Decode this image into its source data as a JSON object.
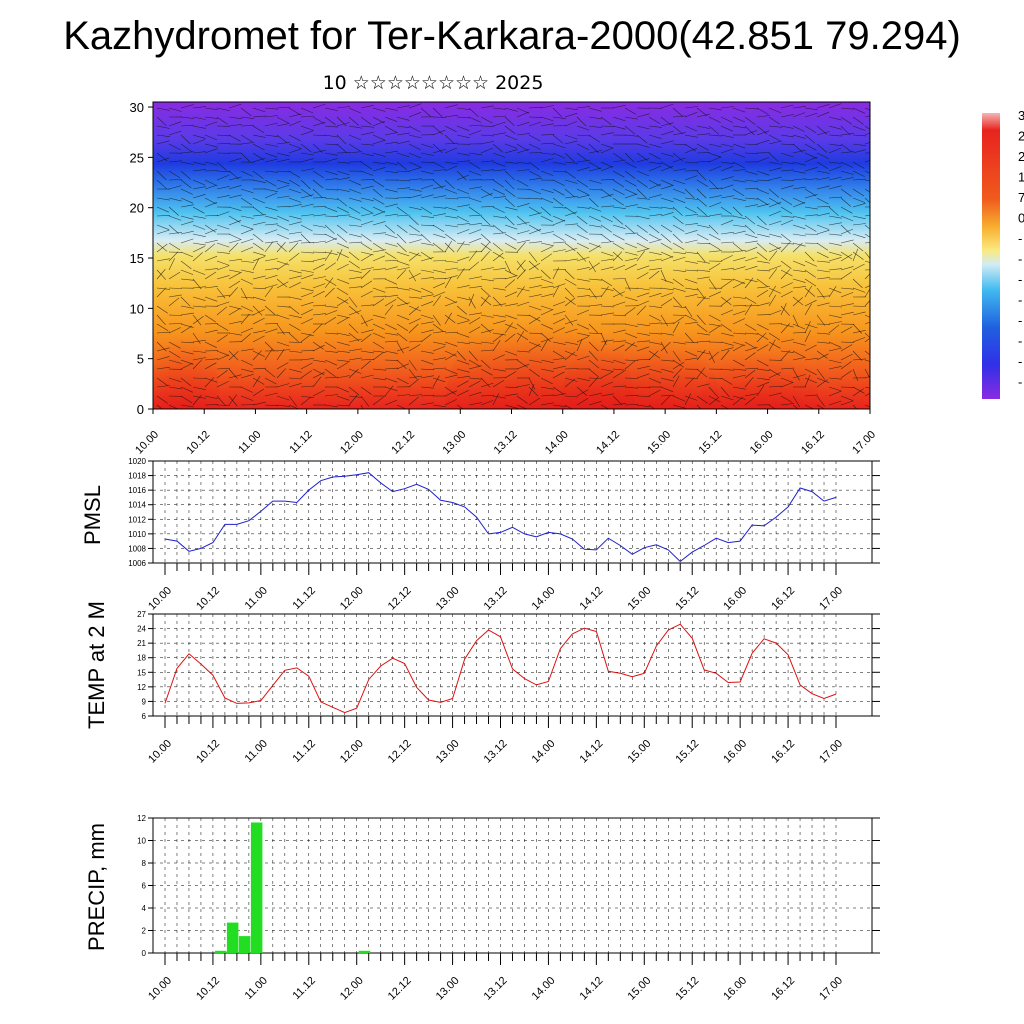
{
  "title": "Kazhydromet for Ter-Karkara-2000(42.851 79.294)",
  "subtitle": "10 ☆☆☆☆☆☆☆☆ 2025",
  "chart_data": [
    {
      "type": "heatmap",
      "name": "cross-section",
      "x_ticks": [
        "10.00",
        "10.12",
        "11.00",
        "11.12",
        "12.00",
        "12.12",
        "13.00",
        "13.12",
        "14.00",
        "14.12",
        "15.00",
        "15.12",
        "16.00",
        "16.12",
        "17.00"
      ],
      "y_ticks": [
        0,
        5,
        10,
        15,
        20,
        25,
        30
      ],
      "ylim": [
        0,
        30.5
      ],
      "colorbar_labels": [
        "3",
        "2",
        "2",
        "1",
        "7",
        "0",
        "-",
        "-",
        "-",
        "-",
        "-",
        "-",
        "-",
        "-"
      ],
      "colors": {
        "top": "#8a2be2",
        "blue": "#1f3be0",
        "cyan": "#4fc3f0",
        "yellow": "#f5e16a",
        "orange": "#f7941d",
        "red": "#e8231e"
      }
    },
    {
      "type": "line",
      "ylabel": "PMSL",
      "ylim": [
        1006,
        1020
      ],
      "y_ticks": [
        1006,
        1008,
        1010,
        1012,
        1014,
        1016,
        1018,
        1020
      ],
      "x_ticks": [
        "10.00",
        "10.12",
        "11.00",
        "11.12",
        "12.00",
        "12.12",
        "13.00",
        "13.12",
        "14.00",
        "14.12",
        "15.00",
        "15.12",
        "16.00",
        "16.12",
        "17.00"
      ],
      "color": "#1f1fd0",
      "values": [
        1009.3,
        1009.0,
        1007.6,
        1008.0,
        1008.8,
        1011.3,
        1011.3,
        1011.8,
        1013.1,
        1014.5,
        1014.5,
        1014.3,
        1016.0,
        1017.3,
        1017.8,
        1017.9,
        1018.1,
        1018.4,
        1017.0,
        1015.8,
        1016.2,
        1016.8,
        1016.1,
        1014.6,
        1014.3,
        1013.7,
        1012.3,
        1010.0,
        1010.2,
        1010.9,
        1010.0,
        1009.6,
        1010.2,
        1010.0,
        1009.3,
        1007.9,
        1007.8,
        1009.4,
        1008.4,
        1007.2,
        1008.1,
        1008.5,
        1007.8,
        1006.2,
        1007.5,
        1008.4,
        1009.4,
        1008.8,
        1009.0,
        1011.2,
        1011.1,
        1012.3,
        1013.7,
        1016.3,
        1015.8,
        1014.5,
        1015.0
      ]
    },
    {
      "type": "line",
      "ylabel": "TEMP at 2 M",
      "ylim": [
        6,
        27
      ],
      "y_ticks": [
        6,
        9,
        12,
        15,
        18,
        21,
        24,
        27
      ],
      "x_ticks": [
        "10.00",
        "10.12",
        "11.00",
        "11.12",
        "12.00",
        "12.12",
        "13.00",
        "13.12",
        "14.00",
        "14.12",
        "15.00",
        "15.12",
        "16.00",
        "16.12",
        "17.00"
      ],
      "color": "#e01010",
      "values": [
        8.6,
        15.8,
        18.8,
        16.7,
        14.4,
        9.7,
        8.6,
        8.7,
        9.2,
        12.3,
        15.4,
        15.9,
        14.2,
        8.9,
        7.8,
        6.7,
        7.6,
        13.5,
        16.3,
        17.9,
        16.8,
        11.9,
        9.3,
        8.8,
        9.6,
        17.7,
        21.5,
        23.7,
        22.3,
        15.7,
        13.7,
        12.4,
        13.1,
        19.9,
        22.9,
        24.1,
        23.4,
        15.2,
        14.8,
        14.1,
        14.8,
        20.4,
        23.7,
        24.9,
        22.0,
        15.5,
        14.8,
        12.9,
        13.0,
        18.9,
        21.9,
        21.0,
        18.6,
        12.4,
        10.6,
        9.6,
        10.5
      ]
    },
    {
      "type": "bar",
      "ylabel": "PRECIP, mm",
      "ylim": [
        0,
        12
      ],
      "y_ticks": [
        0,
        2,
        4,
        6,
        8,
        10,
        12
      ],
      "x_ticks": [
        "10.00",
        "10.12",
        "11.00",
        "11.12",
        "12.00",
        "12.12",
        "13.00",
        "13.12",
        "14.00",
        "14.12",
        "15.00",
        "15.12",
        "16.00",
        "16.12",
        "17.00"
      ],
      "color": "#22dd22",
      "values": [
        0,
        0,
        0,
        0,
        0.2,
        2.7,
        1.5,
        11.6,
        0,
        0,
        0,
        0,
        0,
        0,
        0,
        0,
        0.2,
        0,
        0,
        0,
        0,
        0,
        0,
        0,
        0,
        0,
        0,
        0,
        0,
        0,
        0,
        0,
        0,
        0,
        0,
        0,
        0,
        0,
        0,
        0,
        0,
        0,
        0,
        0,
        0,
        0,
        0,
        0,
        0,
        0,
        0,
        0,
        0,
        0,
        0,
        0,
        0
      ]
    }
  ]
}
